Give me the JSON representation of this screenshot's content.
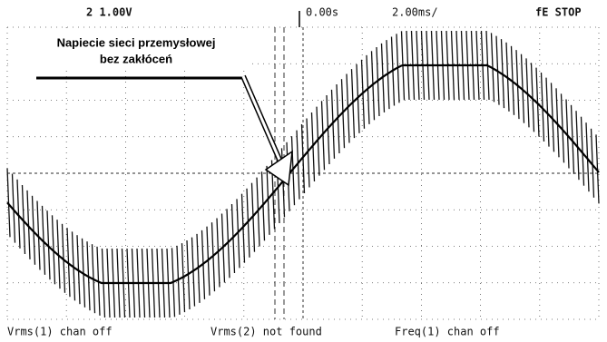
{
  "header": {
    "channel": "2 1.00V",
    "time_offset": "0.00s",
    "time_base": "2.00ms/",
    "status": "fE STOP"
  },
  "annotation": {
    "line1": "Napiecie sieci przemysłowej",
    "line2": "bez zakłóceń"
  },
  "footer": {
    "left": "Vrms(1) chan off",
    "middle": "Vrms(2) not found",
    "right": "Freq(1) chan off"
  }
}
